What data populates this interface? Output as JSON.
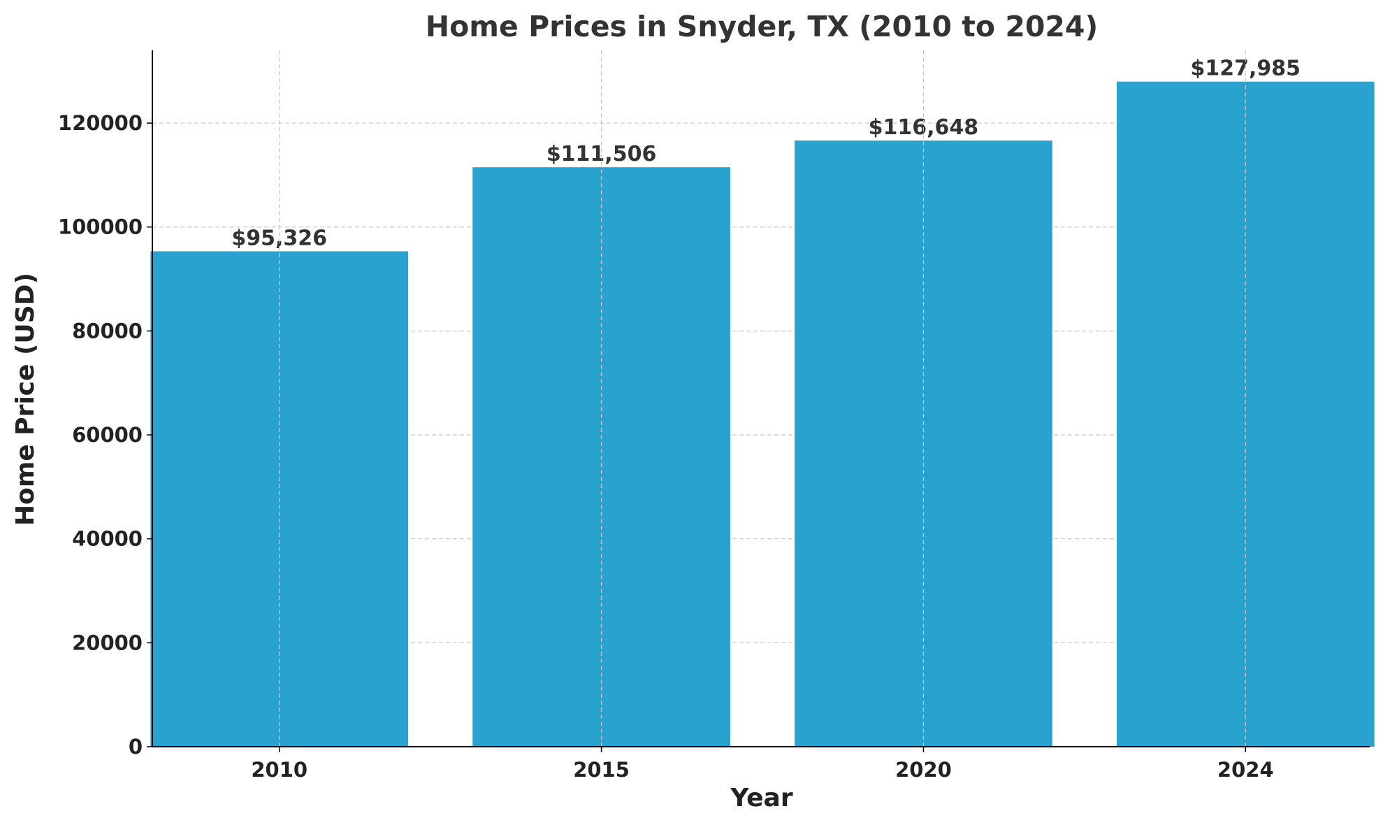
{
  "chart_data": {
    "type": "bar",
    "title": "Home Prices in Snyder, TX (2010 to 2024)",
    "xlabel": "Year",
    "ylabel": "Home Price (USD)",
    "categories": [
      "2010",
      "2015",
      "2020",
      "2024"
    ],
    "values": [
      95326,
      111506,
      116648,
      127985
    ],
    "data_labels": [
      "$95,326",
      "$111,506",
      "$116,648",
      "$127,985"
    ],
    "ylim": [
      0,
      134000
    ],
    "yticks": [
      0,
      20000,
      40000,
      60000,
      80000,
      100000,
      120000
    ],
    "ytick_labels": [
      "0",
      "20000",
      "40000",
      "60000",
      "80000",
      "100000",
      "120000"
    ],
    "grid": true,
    "bar_color": "#2aa2cf"
  }
}
